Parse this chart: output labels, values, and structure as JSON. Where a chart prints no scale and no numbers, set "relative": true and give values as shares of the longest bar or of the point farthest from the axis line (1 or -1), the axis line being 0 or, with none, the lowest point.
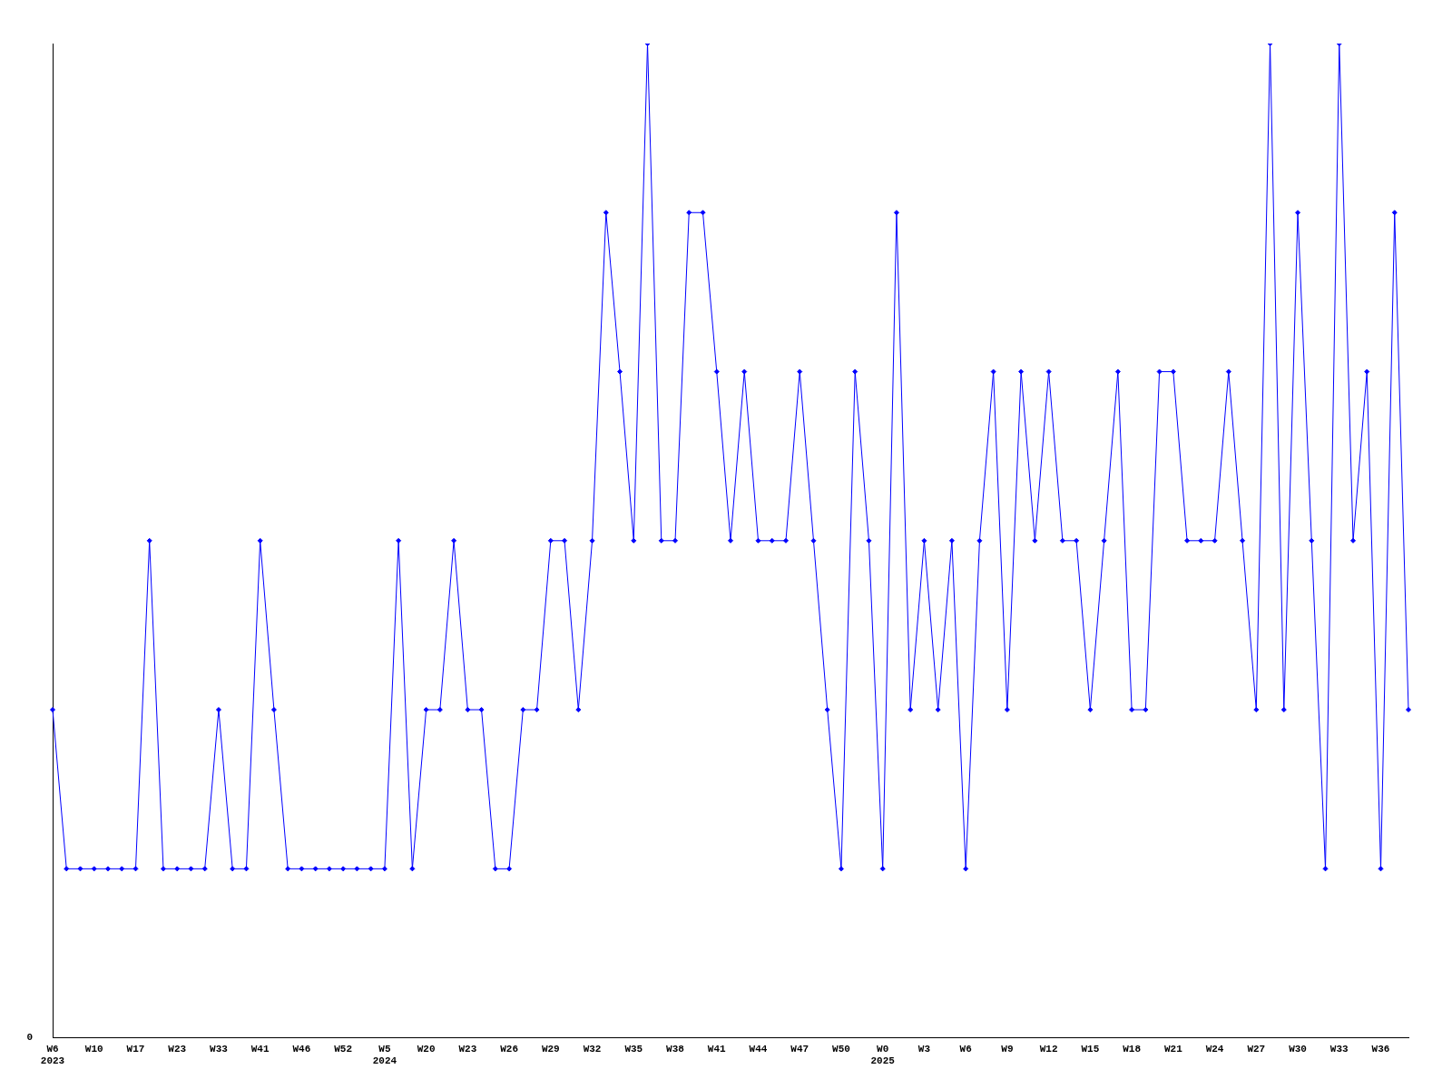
{
  "chart_data": {
    "type": "line",
    "relative": true,
    "marker": "diamond",
    "grid": false,
    "legend": false,
    "annotations": [
      "0"
    ],
    "categories": [
      "W6\n2023",
      null,
      null,
      "W10",
      null,
      null,
      "W17",
      null,
      null,
      "W23",
      null,
      null,
      "W33",
      null,
      null,
      "W41",
      null,
      null,
      "W46",
      null,
      null,
      "W52",
      null,
      null,
      "W5\n2024",
      null,
      null,
      "W20",
      null,
      null,
      "W23",
      null,
      null,
      "W26",
      null,
      null,
      "W29",
      null,
      null,
      "W32",
      null,
      null,
      "W35",
      null,
      null,
      "W38",
      null,
      null,
      "W41",
      null,
      null,
      "W44",
      null,
      null,
      "W47",
      null,
      null,
      "W50",
      null,
      null,
      "W0\n2025",
      null,
      null,
      "W3",
      null,
      null,
      "W6",
      null,
      null,
      "W9",
      null,
      null,
      "W12",
      null,
      null,
      "W15",
      null,
      null,
      "W18",
      null,
      null,
      "W21",
      null,
      null,
      "W24",
      null,
      null,
      "W27",
      null,
      null,
      "W30",
      null,
      null,
      "W33",
      null,
      null,
      "W36",
      null,
      null
    ],
    "series": [
      {
        "color": "#0000ff",
        "values": [
          0.33,
          0.17,
          0.17,
          0.17,
          0.17,
          0.17,
          0.17,
          0.5,
          0.17,
          0.17,
          0.17,
          0.17,
          0.33,
          0.17,
          0.17,
          0.5,
          0.33,
          0.17,
          0.17,
          0.17,
          0.17,
          0.17,
          0.17,
          0.17,
          0.17,
          0.5,
          0.17,
          0.33,
          0.33,
          0.5,
          0.33,
          0.33,
          0.17,
          0.17,
          0.33,
          0.33,
          0.5,
          0.5,
          0.33,
          0.5,
          0.83,
          0.67,
          0.5,
          1,
          0.5,
          0.5,
          0.83,
          0.83,
          0.67,
          0.5,
          0.67,
          0.5,
          0.5,
          0.5,
          0.67,
          0.5,
          0.33,
          0.17,
          0.67,
          0.5,
          0.17,
          0.83,
          0.33,
          0.5,
          0.33,
          0.5,
          0.17,
          0.5,
          0.67,
          0.33,
          0.67,
          0.5,
          0.67,
          0.5,
          0.5,
          0.33,
          0.5,
          0.67,
          0.33,
          0.33,
          0.67,
          0.67,
          0.5,
          0.5,
          0.5,
          0.67,
          0.5,
          0.33,
          1,
          0.33,
          0.83,
          0.5,
          0.17,
          1,
          0.5,
          0.67,
          0.17,
          0.83,
          0.33
        ]
      }
    ]
  }
}
